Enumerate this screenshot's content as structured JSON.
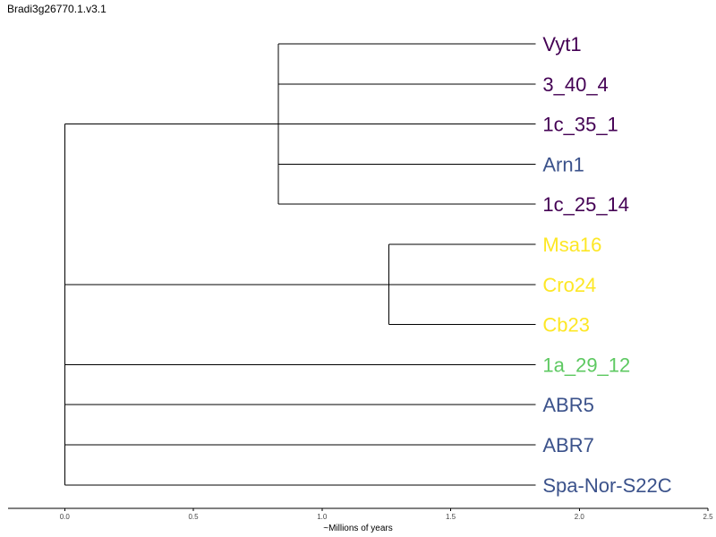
{
  "title": "Bradi3g26770.1.v3.1",
  "chart_data": {
    "type": "dendrogram",
    "xlabel": "~Millions of years",
    "xlim": [
      -0.22,
      2.5
    ],
    "ticks": [
      0.0,
      0.5,
      1.0,
      1.5,
      2.0,
      2.5
    ],
    "tick_labels": [
      "0.0",
      "0.5",
      "1.0",
      "1.5",
      "2.0",
      "2.5"
    ],
    "leaf_tip": 1.83,
    "leaves": [
      {
        "name": "Vyt1",
        "color": "#440154"
      },
      {
        "name": "3_40_4",
        "color": "#440154"
      },
      {
        "name": "1c_35_1",
        "color": "#440154"
      },
      {
        "name": "Arn1",
        "color": "#3b528b"
      },
      {
        "name": "1c_25_14",
        "color": "#440154"
      },
      {
        "name": "Msa16",
        "color": "#fde725"
      },
      {
        "name": "Cro24",
        "color": "#fde725"
      },
      {
        "name": "Cb23",
        "color": "#fde725"
      },
      {
        "name": "1a_29_12",
        "color": "#5ec962"
      },
      {
        "name": "ABR5",
        "color": "#3b528b"
      },
      {
        "name": "ABR7",
        "color": "#3b528b"
      },
      {
        "name": "Spa-Nor-S22C",
        "color": "#3b528b"
      }
    ],
    "clades": [
      {
        "height": 0.83,
        "first_leaf": 0,
        "last_leaf": 4,
        "stem_leaf": 2
      },
      {
        "height": 1.26,
        "first_leaf": 5,
        "last_leaf": 7,
        "stem_leaf": 6
      },
      {
        "height": 0.0,
        "first_leaf": 2,
        "last_leaf": 11
      }
    ]
  }
}
